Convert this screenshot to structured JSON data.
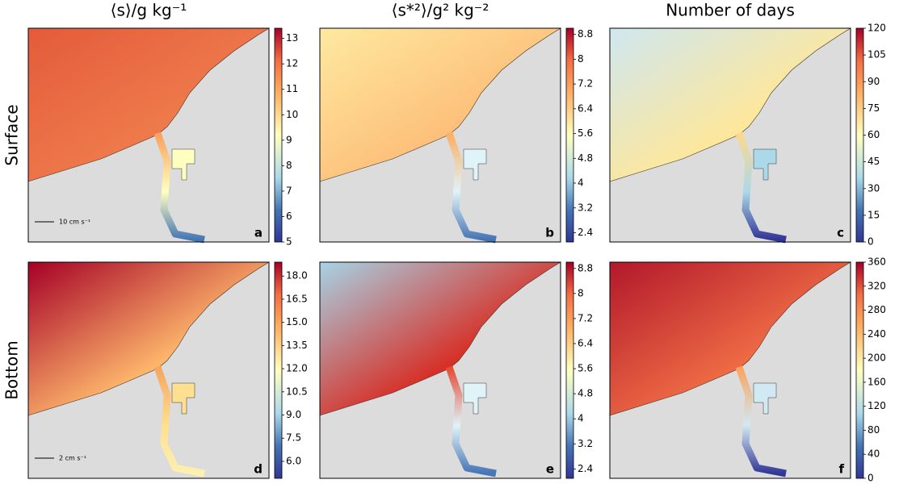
{
  "columns": [
    {
      "title": "⟨s⟩/g kg⁻¹"
    },
    {
      "title": "⟨s*²⟩/g² kg⁻²"
    },
    {
      "title": "Number of days"
    }
  ],
  "rows": [
    {
      "label": "Surface"
    },
    {
      "label": "Bottom"
    }
  ],
  "panels": [
    {
      "letter": "a",
      "scale_label": "10 cm s⁻¹",
      "colorbar": {
        "lim": [
          5,
          13.4
        ],
        "ticks": [
          5,
          6,
          7,
          8,
          9,
          10,
          11,
          12,
          13
        ]
      }
    },
    {
      "letter": "b",
      "colorbar": {
        "lim": [
          2.1,
          9.0
        ],
        "ticks": [
          2.4,
          3.2,
          4.0,
          4.8,
          5.6,
          6.4,
          7.2,
          8.0,
          8.8
        ]
      }
    },
    {
      "letter": "c",
      "colorbar": {
        "lim": [
          0,
          120
        ],
        "ticks": [
          0,
          15,
          30,
          45,
          60,
          75,
          90,
          105,
          120
        ]
      }
    },
    {
      "letter": "d",
      "scale_label": "2 cm s⁻¹",
      "colorbar": {
        "lim": [
          4.9,
          18.9
        ],
        "ticks": [
          {
            "value": 6,
            "label": "6.0"
          },
          7.5,
          {
            "value": 9,
            "label": "9.0"
          },
          10.5,
          {
            "value": 12,
            "label": "12.0"
          },
          13.5,
          {
            "value": 15,
            "label": "15.0"
          },
          16.5,
          {
            "value": 18,
            "label": "18.0"
          }
        ]
      }
    },
    {
      "letter": "e",
      "colorbar": {
        "lim": [
          2.1,
          9.0
        ],
        "ticks": [
          2.4,
          3.2,
          4.0,
          4.8,
          5.6,
          6.4,
          7.2,
          8.0,
          8.8
        ]
      }
    },
    {
      "letter": "f",
      "colorbar": {
        "lim": [
          0,
          360
        ],
        "ticks": [
          0,
          40,
          80,
          120,
          160,
          200,
          240,
          280,
          320,
          360
        ]
      }
    }
  ]
}
